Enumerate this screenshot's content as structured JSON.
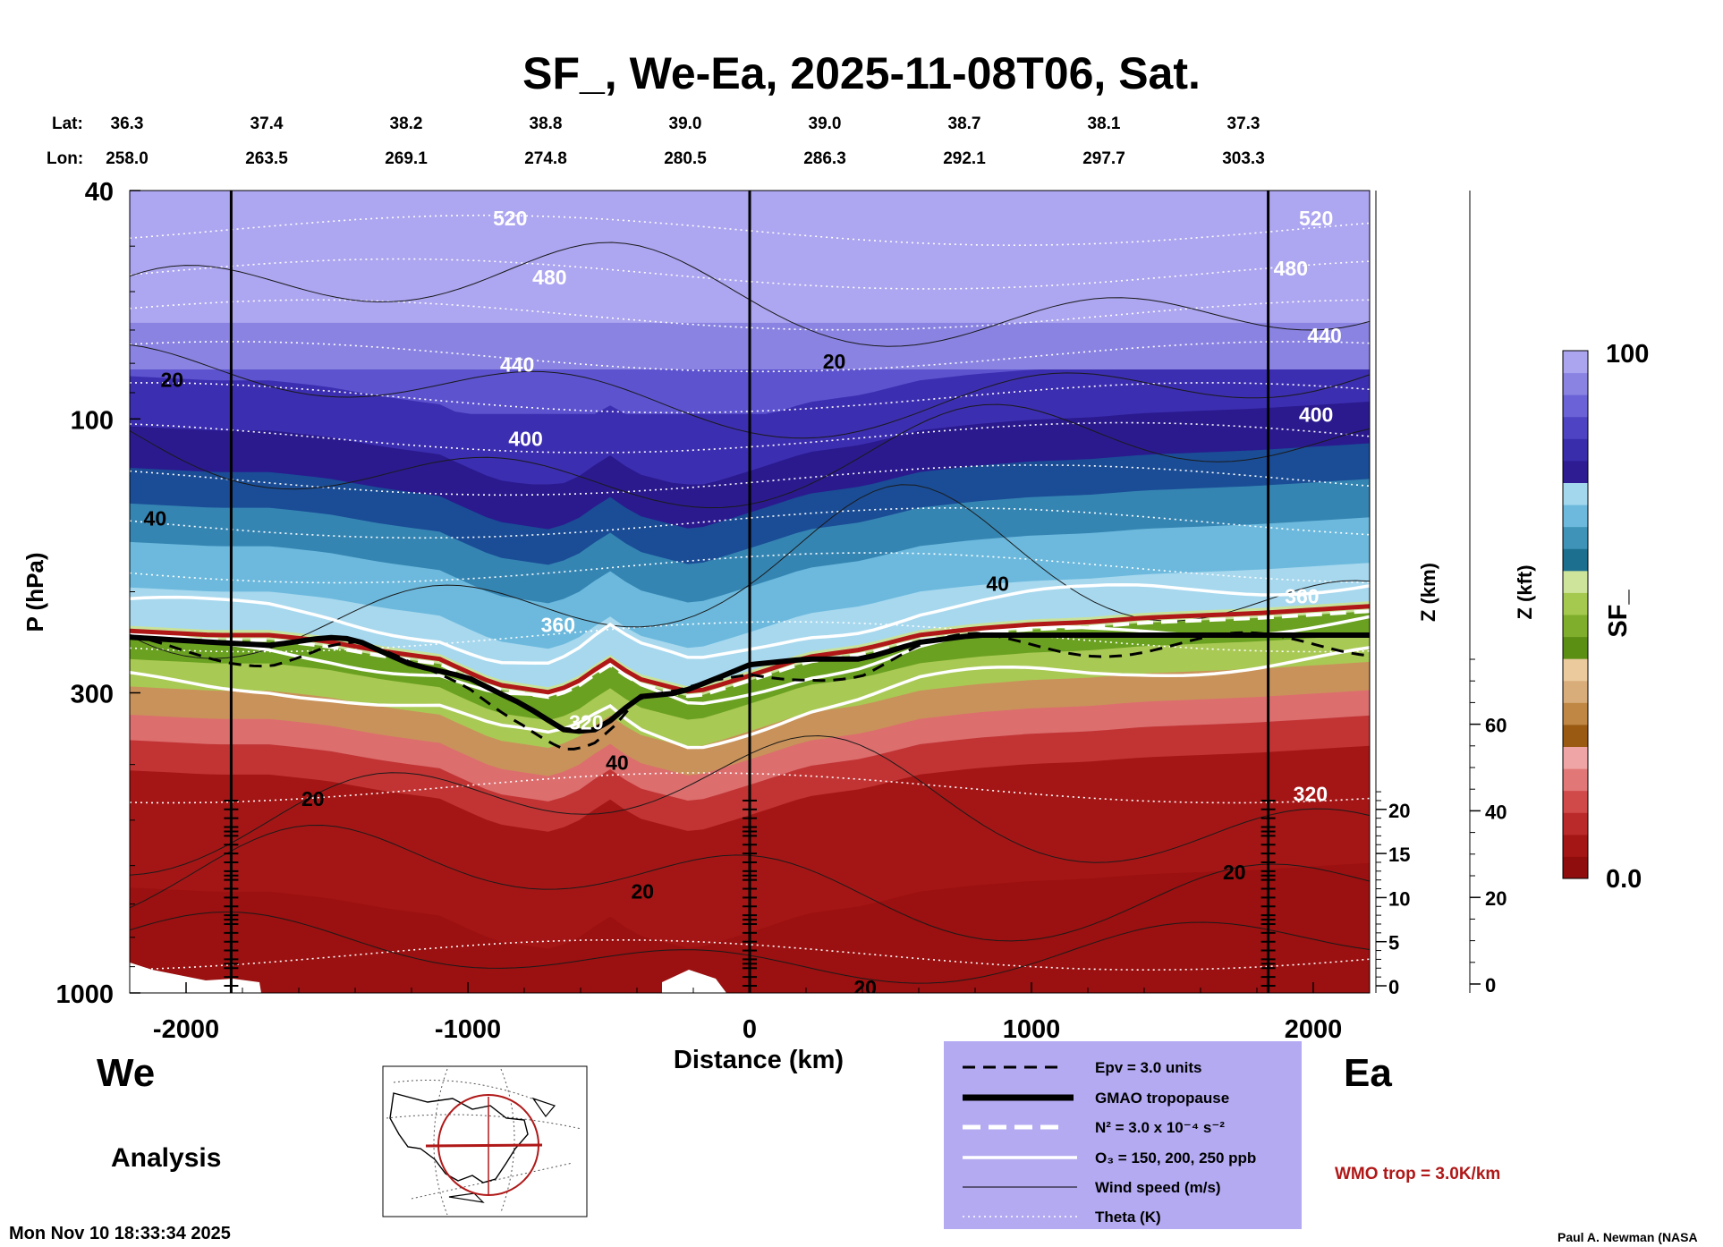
{
  "chart_data": {
    "type": "heatmap",
    "title": "SF_, We-Ea, 2025-11-08T06, Sat.",
    "xlabel": "Distance (km)",
    "ylabel": "P (hPa)",
    "y2label": "Z (km)",
    "y3label": "Z (kft)",
    "colorbar_label": "SF_",
    "x_range": [
      -2200,
      2200
    ],
    "y_range_hpa": [
      1000,
      40
    ],
    "x_ticks": [
      -2000,
      -1000,
      0,
      1000,
      2000
    ],
    "x_tick_labels": [
      "-2000",
      "-1000",
      "0",
      "1000",
      "2000"
    ],
    "y_ticks": [
      40,
      100,
      300,
      1000
    ],
    "y_tick_labels": [
      "40",
      "100",
      "300",
      "1000"
    ],
    "zkm_ticks": [
      0,
      5,
      10,
      15,
      20
    ],
    "zkm_tick_labels": [
      "0",
      "5",
      "10",
      "15",
      "20"
    ],
    "zkft_ticks": [
      0,
      20,
      40,
      60
    ],
    "zkft_tick_labels": [
      "0",
      "20",
      "40",
      "60"
    ],
    "colorbar_max_label": "100",
    "colorbar_min_label": "0.0",
    "colorbar_range": [
      0,
      100
    ],
    "colorbar_colors": [
      "#8f0d0d",
      "#a41515",
      "#bb2a2a",
      "#d14a4a",
      "#e27777",
      "#efa5a5",
      "#9a5a12",
      "#bf8743",
      "#d9ad7a",
      "#ebcb9e",
      "#5b8f14",
      "#7eae2b",
      "#a5c94e",
      "#cee49a",
      "#1d6f8f",
      "#3f93b8",
      "#6cb9dd",
      "#a3d7ee",
      "#2e1c92",
      "#3a2dab",
      "#4e43c2",
      "#6a62d6",
      "#8a83e2",
      "#aba4ef"
    ],
    "lat_label": "Lat:",
    "lon_label": "Lon:",
    "lat_values": [
      "36.3",
      "37.4",
      "38.2",
      "38.8",
      "39.0",
      "39.0",
      "38.7",
      "38.1",
      "37.3"
    ],
    "lon_values": [
      "258.0",
      "263.5",
      "269.1",
      "274.8",
      "280.5",
      "286.3",
      "292.1",
      "297.7",
      "303.3"
    ],
    "vertical_lines_km": [
      -1840,
      0,
      1840
    ],
    "tropopause_gmao": {
      "x": [
        -2200,
        -1900,
        -1700,
        -1500,
        -1400,
        -1200,
        -1000,
        -800,
        -650,
        -560,
        -480,
        -400,
        -250,
        0,
        200,
        400,
        600,
        800,
        1000,
        1400,
        1800,
        2200
      ],
      "p": [
        240,
        245,
        248,
        240,
        242,
        268,
        282,
        315,
        350,
        350,
        332,
        305,
        300,
        268,
        262,
        262,
        245,
        238,
        238,
        238,
        238,
        238
      ]
    },
    "wmo_tropopause": {
      "x": [
        -2200,
        -1900,
        -1700,
        -1500,
        -1300,
        -1100,
        -900,
        -700,
        -600,
        -500,
        -400,
        -200,
        0,
        200,
        400,
        600,
        800,
        1000,
        1200,
        1400,
        1800,
        2200
      ],
      "p": [
        234,
        238,
        238,
        244,
        254,
        262,
        290,
        300,
        285,
        262,
        283,
        300,
        280,
        260,
        252,
        238,
        232,
        228,
        226,
        222,
        218,
        212
      ]
    },
    "theta_labels": [
      {
        "text": "520",
        "x": -850,
        "p": 45
      },
      {
        "text": "480",
        "x": -710,
        "p": 57
      },
      {
        "text": "440",
        "x": -825,
        "p": 81
      },
      {
        "text": "400",
        "x": -795,
        "p": 109
      },
      {
        "text": "360",
        "x": -680,
        "p": 230
      },
      {
        "text": "520",
        "x": 2010,
        "p": 45
      },
      {
        "text": "480",
        "x": 1920,
        "p": 55
      },
      {
        "text": "440",
        "x": 2040,
        "p": 72
      },
      {
        "text": "400",
        "x": 2010,
        "p": 99
      },
      {
        "text": "360",
        "x": 1960,
        "p": 205
      },
      {
        "text": "320",
        "x": 1990,
        "p": 453
      },
      {
        "text": "320",
        "x": -580,
        "p": 340
      }
    ],
    "wind_labels": [
      {
        "text": "20",
        "x": -2050,
        "p": 86
      },
      {
        "text": "40",
        "x": -2110,
        "p": 150
      },
      {
        "text": "20",
        "x": 300,
        "p": 80
      },
      {
        "text": "40",
        "x": 880,
        "p": 195
      },
      {
        "text": "20",
        "x": -1550,
        "p": 462
      },
      {
        "text": "40",
        "x": -470,
        "p": 400
      },
      {
        "text": "20",
        "x": -380,
        "p": 670
      },
      {
        "text": "20",
        "x": 410,
        "p": 985
      },
      {
        "text": "20",
        "x": 1720,
        "p": 620
      }
    ]
  },
  "labels": {
    "west": "We",
    "east": "Ea",
    "analysis": "Analysis",
    "timestamp": "Mon Nov 10 18:33:34 2025",
    "credit": "Paul A. Newman (NASA",
    "wmo_trop": "WMO trop = 3.0K/km"
  },
  "legend": {
    "items": [
      {
        "text": "Epv = 3.0 units"
      },
      {
        "text": "GMAO tropopause"
      },
      {
        "text": "N² = 3.0 x 10⁻⁴ s⁻²"
      },
      {
        "text": "O₃ = 150, 200, 250 ppb"
      },
      {
        "text": "Wind speed (m/s)"
      },
      {
        "text": "Theta (K)"
      }
    ],
    "background": "#b3aaf2"
  }
}
